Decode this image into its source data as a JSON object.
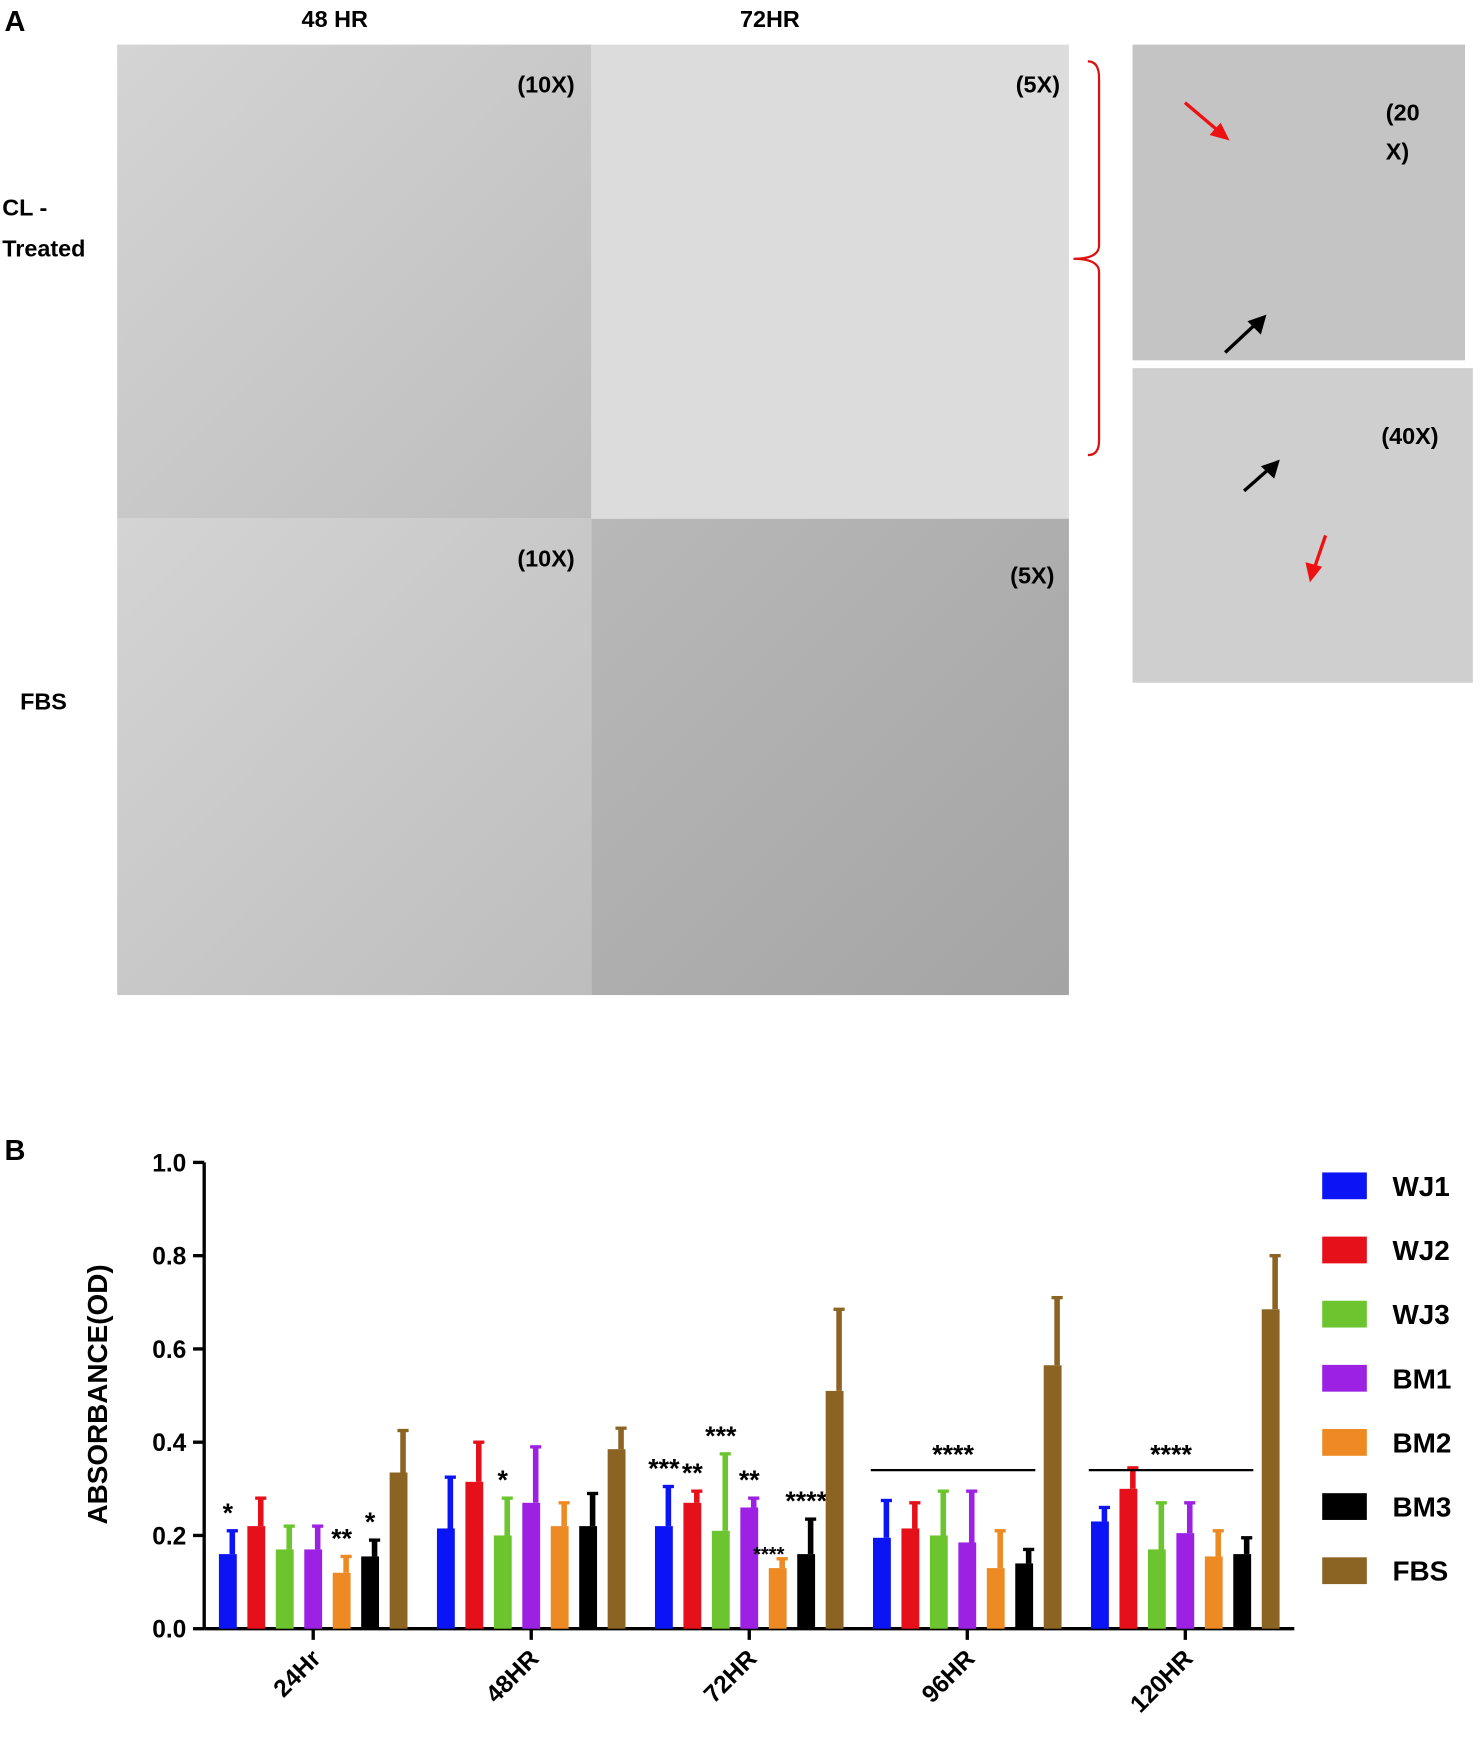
{
  "panel_a": {
    "label": "A",
    "columns": [
      "48 HR",
      "72HR"
    ],
    "rows": [
      [
        "CL -",
        "Treated"
      ],
      [
        "FBS"
      ]
    ],
    "magnifications": [
      "(10X)",
      "(5X)",
      "(10X)",
      "(5X)"
    ],
    "zoom_magnifications": [
      [
        "(20",
        "X)"
      ],
      [
        "(40X)"
      ]
    ]
  },
  "panel_b_label": "B",
  "chart_data": {
    "type": "bar",
    "y_label": "ABSORBANCE(OD)",
    "categories": [
      "24Hr",
      "48HR",
      "72HR",
      "96HR",
      "120HR"
    ],
    "ylim": [
      0,
      1
    ],
    "yticks": [
      {
        "value": 0,
        "label": "0.0"
      },
      0.2,
      0.4,
      0.6,
      0.8,
      {
        "value": 1,
        "label": "1.0"
      }
    ],
    "grid": false,
    "legend": "right",
    "series": [
      {
        "name": "WJ1",
        "color": "#0a14f5",
        "values": [
          0.16,
          0.215,
          0.22,
          0.195,
          0.23
        ],
        "errors": [
          0.05,
          0.11,
          0.085,
          0.08,
          0.03
        ],
        "annotations": [
          "*",
          null,
          "***",
          null,
          null
        ]
      },
      {
        "name": "WJ2",
        "color": "#e5101a",
        "values": [
          0.22,
          0.315,
          0.27,
          0.215,
          0.3
        ],
        "errors": [
          0.06,
          0.085,
          0.025,
          0.055,
          0.045
        ],
        "annotations": [
          null,
          null,
          "**",
          null,
          null
        ]
      },
      {
        "name": "WJ3",
        "color": "#6cc52e",
        "values": [
          0.17,
          0.2,
          0.21,
          0.2,
          0.17
        ],
        "errors": [
          0.05,
          0.08,
          0.165,
          0.095,
          0.1
        ],
        "annotations": [
          null,
          "*",
          "***",
          null,
          null
        ]
      },
      {
        "name": "BM1",
        "color": "#9c21e3",
        "values": [
          0.17,
          0.27,
          0.26,
          0.185,
          0.205
        ],
        "errors": [
          0.05,
          0.12,
          0.02,
          0.11,
          0.065
        ],
        "annotations": [
          null,
          null,
          "**",
          null,
          null
        ]
      },
      {
        "name": "BM2",
        "color": "#ee8a24",
        "values": [
          0.12,
          0.22,
          0.13,
          0.13,
          0.155
        ],
        "errors": [
          0.035,
          0.05,
          0.02,
          0.08,
          0.055
        ],
        "annotations": [
          "**",
          null,
          "****",
          null,
          null
        ]
      },
      {
        "name": "BM3",
        "color": "#000000",
        "values": [
          0.155,
          0.22,
          0.16,
          0.14,
          0.16
        ],
        "errors": [
          0.035,
          0.07,
          0.075,
          0.03,
          0.035
        ],
        "annotations": [
          "*",
          null,
          "****",
          null,
          null
        ]
      },
      {
        "name": "FBS",
        "color": "#8b6424",
        "values": [
          0.335,
          0.385,
          0.51,
          0.565,
          0.685
        ],
        "errors": [
          0.09,
          0.045,
          0.175,
          0.145,
          0.115
        ],
        "annotations": [
          null,
          null,
          null,
          null,
          null
        ]
      }
    ],
    "group_annotations": [
      null,
      null,
      null,
      "****",
      "****"
    ]
  }
}
